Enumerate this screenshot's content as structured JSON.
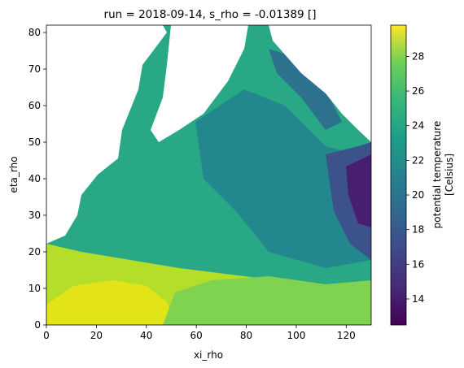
{
  "chart_data": {
    "type": "heatmap",
    "title": "run = 2018-09-14, s_rho = -0.01389 []",
    "xlabel": "xi_rho",
    "ylabel": "eta_rho",
    "xlim": [
      0,
      130
    ],
    "ylim": [
      0,
      82
    ],
    "x_ticks": [
      "0",
      "20",
      "40",
      "60",
      "80",
      "100",
      "120"
    ],
    "y_ticks": [
      "0",
      "10",
      "20",
      "30",
      "40",
      "50",
      "60",
      "70",
      "80"
    ],
    "colorbar": {
      "label_line1": "potential temperature",
      "label_line2": "[Celsius]",
      "range": [
        12.5,
        29.8
      ],
      "ticks": [
        "14",
        "16",
        "18",
        "20",
        "22",
        "24",
        "26",
        "28"
      ],
      "colormap": "viridis"
    },
    "field_description_points": [
      {
        "x": 5,
        "y": 3,
        "value": 27.5
      },
      {
        "x": 25,
        "y": 5,
        "value": 28.3
      },
      {
        "x": 60,
        "y": 20,
        "value": 24.5
      },
      {
        "x": 90,
        "y": 50,
        "value": 22.5
      },
      {
        "x": 115,
        "y": 40,
        "value": 19.5
      },
      {
        "x": 125,
        "y": 35,
        "value": 14.5
      },
      {
        "x": 30,
        "y": 40,
        "value": 26.0
      },
      {
        "x": 50,
        "y": 60,
        "value": 25.5
      }
    ]
  }
}
